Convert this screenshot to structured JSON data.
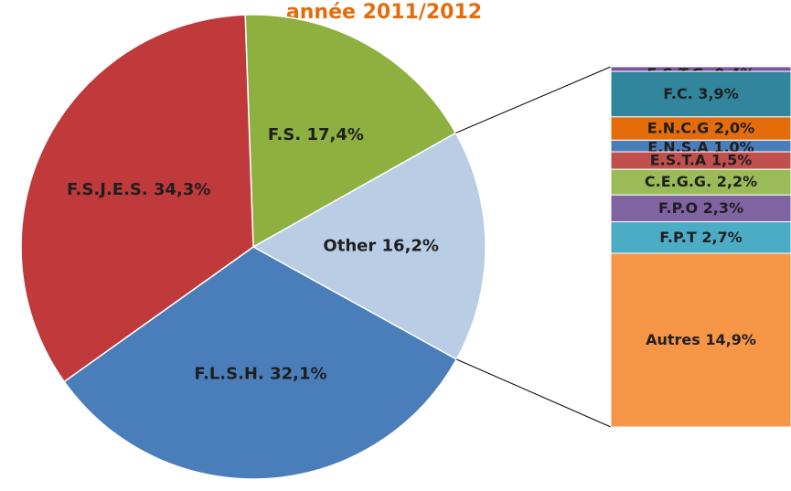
{
  "chart_data": {
    "type": "pie-of-bar",
    "title": "année  2011/2012",
    "categories": [
      "F.S.",
      "Other",
      "F.L.S.H.",
      "F.S.J.E.S."
    ],
    "values": [
      17.4,
      16.2,
      32.1,
      34.3
    ],
    "value_labels": [
      "17,4%",
      "16,2%",
      "32,1%",
      "34,3%"
    ],
    "colors": [
      "#8db040",
      "#b9cde5",
      "#4a7ebb",
      "#c0393b"
    ],
    "bar": {
      "categories": [
        "E.S.T.G.",
        "F.C.",
        "E.N.C.G",
        "E.N.S.A",
        "E.S.T.A",
        "C.E.G.G.",
        "F.P.O",
        "F.P.T",
        "Autres"
      ],
      "values": [
        0.4,
        3.9,
        2.0,
        1.0,
        1.5,
        2.2,
        2.3,
        2.7,
        14.9
      ],
      "value_labels": [
        "0,4%",
        "3,9%",
        "2,0%",
        "1,0%",
        "1,5%",
        "2,2%",
        "2,3%",
        "2,7%",
        "14,9%"
      ],
      "colors": [
        "#7f4fa0",
        "#31859c",
        "#e46c0a",
        "#4a7ebb",
        "#c0504d",
        "#9bbb59",
        "#8064a2",
        "#4bacc6",
        "#f79646"
      ]
    }
  }
}
